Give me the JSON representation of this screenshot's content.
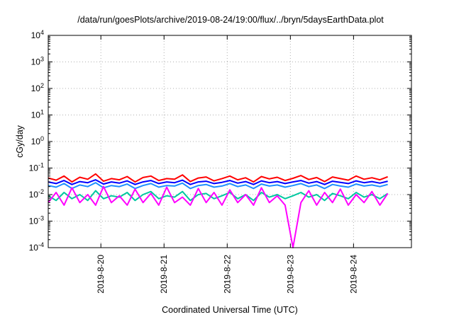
{
  "chart_data": {
    "type": "line",
    "title": "/data/run/goesPlots/archive/2019-08-24/19:00/flux/../bryn/5daysEarthData.plot",
    "xlabel": "Coordinated Universal Time (UTC)",
    "ylabel": "cGy/day",
    "yscale": "log",
    "ylim": [
      0.0001,
      10000
    ],
    "xlim": [
      "2019-08-19 04:00",
      "2019-08-24 22:00"
    ],
    "grid": true,
    "y_ticks": [
      {
        "base": "10",
        "exp": "4"
      },
      {
        "base": "10",
        "exp": "3"
      },
      {
        "base": "10",
        "exp": "2"
      },
      {
        "base": "10",
        "exp": "1"
      },
      {
        "base": "10",
        "exp": "0"
      },
      {
        "base": "10",
        "exp": "-1"
      },
      {
        "base": "10",
        "exp": "-2"
      },
      {
        "base": "10",
        "exp": "-3"
      },
      {
        "base": "10",
        "exp": "-4"
      }
    ],
    "x_ticks": [
      {
        "label": "2019-8-20",
        "value": "2019-08-20 00:00"
      },
      {
        "label": "2019-8-21",
        "value": "2019-08-21 00:00"
      },
      {
        "label": "2019-8-22",
        "value": "2019-08-22 00:00"
      },
      {
        "label": "2019-8-23",
        "value": "2019-08-23 00:00"
      },
      {
        "label": "2019-8-24",
        "value": "2019-08-24 00:00"
      }
    ],
    "series": [
      {
        "color": "#ff0000",
        "x_start": "2019-08-19 04:00",
        "step_hours": 3,
        "values": [
          0.042,
          0.035,
          0.05,
          0.03,
          0.045,
          0.038,
          0.06,
          0.032,
          0.04,
          0.036,
          0.048,
          0.03,
          0.044,
          0.05,
          0.034,
          0.04,
          0.038,
          0.055,
          0.031,
          0.042,
          0.046,
          0.033,
          0.04,
          0.05,
          0.036,
          0.043,
          0.03,
          0.048,
          0.039,
          0.045,
          0.034,
          0.041,
          0.052,
          0.037,
          0.044,
          0.031,
          0.046,
          0.04,
          0.035,
          0.05,
          0.038,
          0.043,
          0.036,
          0.047
        ]
      },
      {
        "color": "#0000ff",
        "x_start": "2019-08-19 04:00",
        "step_hours": 3,
        "values": [
          0.03,
          0.026,
          0.034,
          0.024,
          0.031,
          0.028,
          0.036,
          0.025,
          0.03,
          0.027,
          0.033,
          0.024,
          0.03,
          0.034,
          0.026,
          0.03,
          0.028,
          0.035,
          0.024,
          0.03,
          0.032,
          0.026,
          0.029,
          0.034,
          0.027,
          0.031,
          0.024,
          0.033,
          0.028,
          0.031,
          0.026,
          0.03,
          0.034,
          0.027,
          0.031,
          0.024,
          0.032,
          0.029,
          0.026,
          0.033,
          0.028,
          0.031,
          0.027,
          0.032
        ]
      },
      {
        "color": "#1e90ff",
        "x_start": "2019-08-19 04:00",
        "step_hours": 3,
        "values": [
          0.022,
          0.019,
          0.026,
          0.017,
          0.023,
          0.02,
          0.028,
          0.018,
          0.022,
          0.02,
          0.025,
          0.017,
          0.022,
          0.026,
          0.019,
          0.022,
          0.021,
          0.027,
          0.017,
          0.022,
          0.024,
          0.019,
          0.021,
          0.026,
          0.02,
          0.023,
          0.017,
          0.025,
          0.021,
          0.023,
          0.019,
          0.022,
          0.026,
          0.02,
          0.023,
          0.017,
          0.024,
          0.021,
          0.019,
          0.025,
          0.021,
          0.023,
          0.02,
          0.024
        ]
      },
      {
        "color": "#00c8a0",
        "x_start": "2019-08-19 04:00",
        "step_hours": 3,
        "values": [
          0.009,
          0.006,
          0.012,
          0.007,
          0.01,
          0.006,
          0.014,
          0.007,
          0.009,
          0.008,
          0.012,
          0.006,
          0.01,
          0.013,
          0.007,
          0.009,
          0.008,
          0.013,
          0.006,
          0.01,
          0.011,
          0.007,
          0.009,
          0.012,
          0.007,
          0.01,
          0.006,
          0.012,
          0.008,
          0.01,
          0.007,
          0.009,
          0.012,
          0.008,
          0.01,
          0.006,
          0.011,
          0.009,
          0.007,
          0.012,
          0.008,
          0.01,
          0.007,
          0.011
        ]
      },
      {
        "color": "#ff00ff",
        "x_start": "2019-08-19 04:00",
        "step_hours": 3,
        "values": [
          0.005,
          0.012,
          0.004,
          0.018,
          0.005,
          0.01,
          0.004,
          0.02,
          0.005,
          0.009,
          0.004,
          0.016,
          0.005,
          0.011,
          0.004,
          0.019,
          0.005,
          0.008,
          0.004,
          0.017,
          0.005,
          0.012,
          0.004,
          0.015,
          0.005,
          0.01,
          0.004,
          0.018,
          0.005,
          0.009,
          0.004,
          0.0001,
          0.005,
          0.014,
          0.004,
          0.012,
          0.005,
          0.016,
          0.004,
          0.01,
          0.005,
          0.013,
          0.004,
          0.011
        ]
      }
    ]
  }
}
